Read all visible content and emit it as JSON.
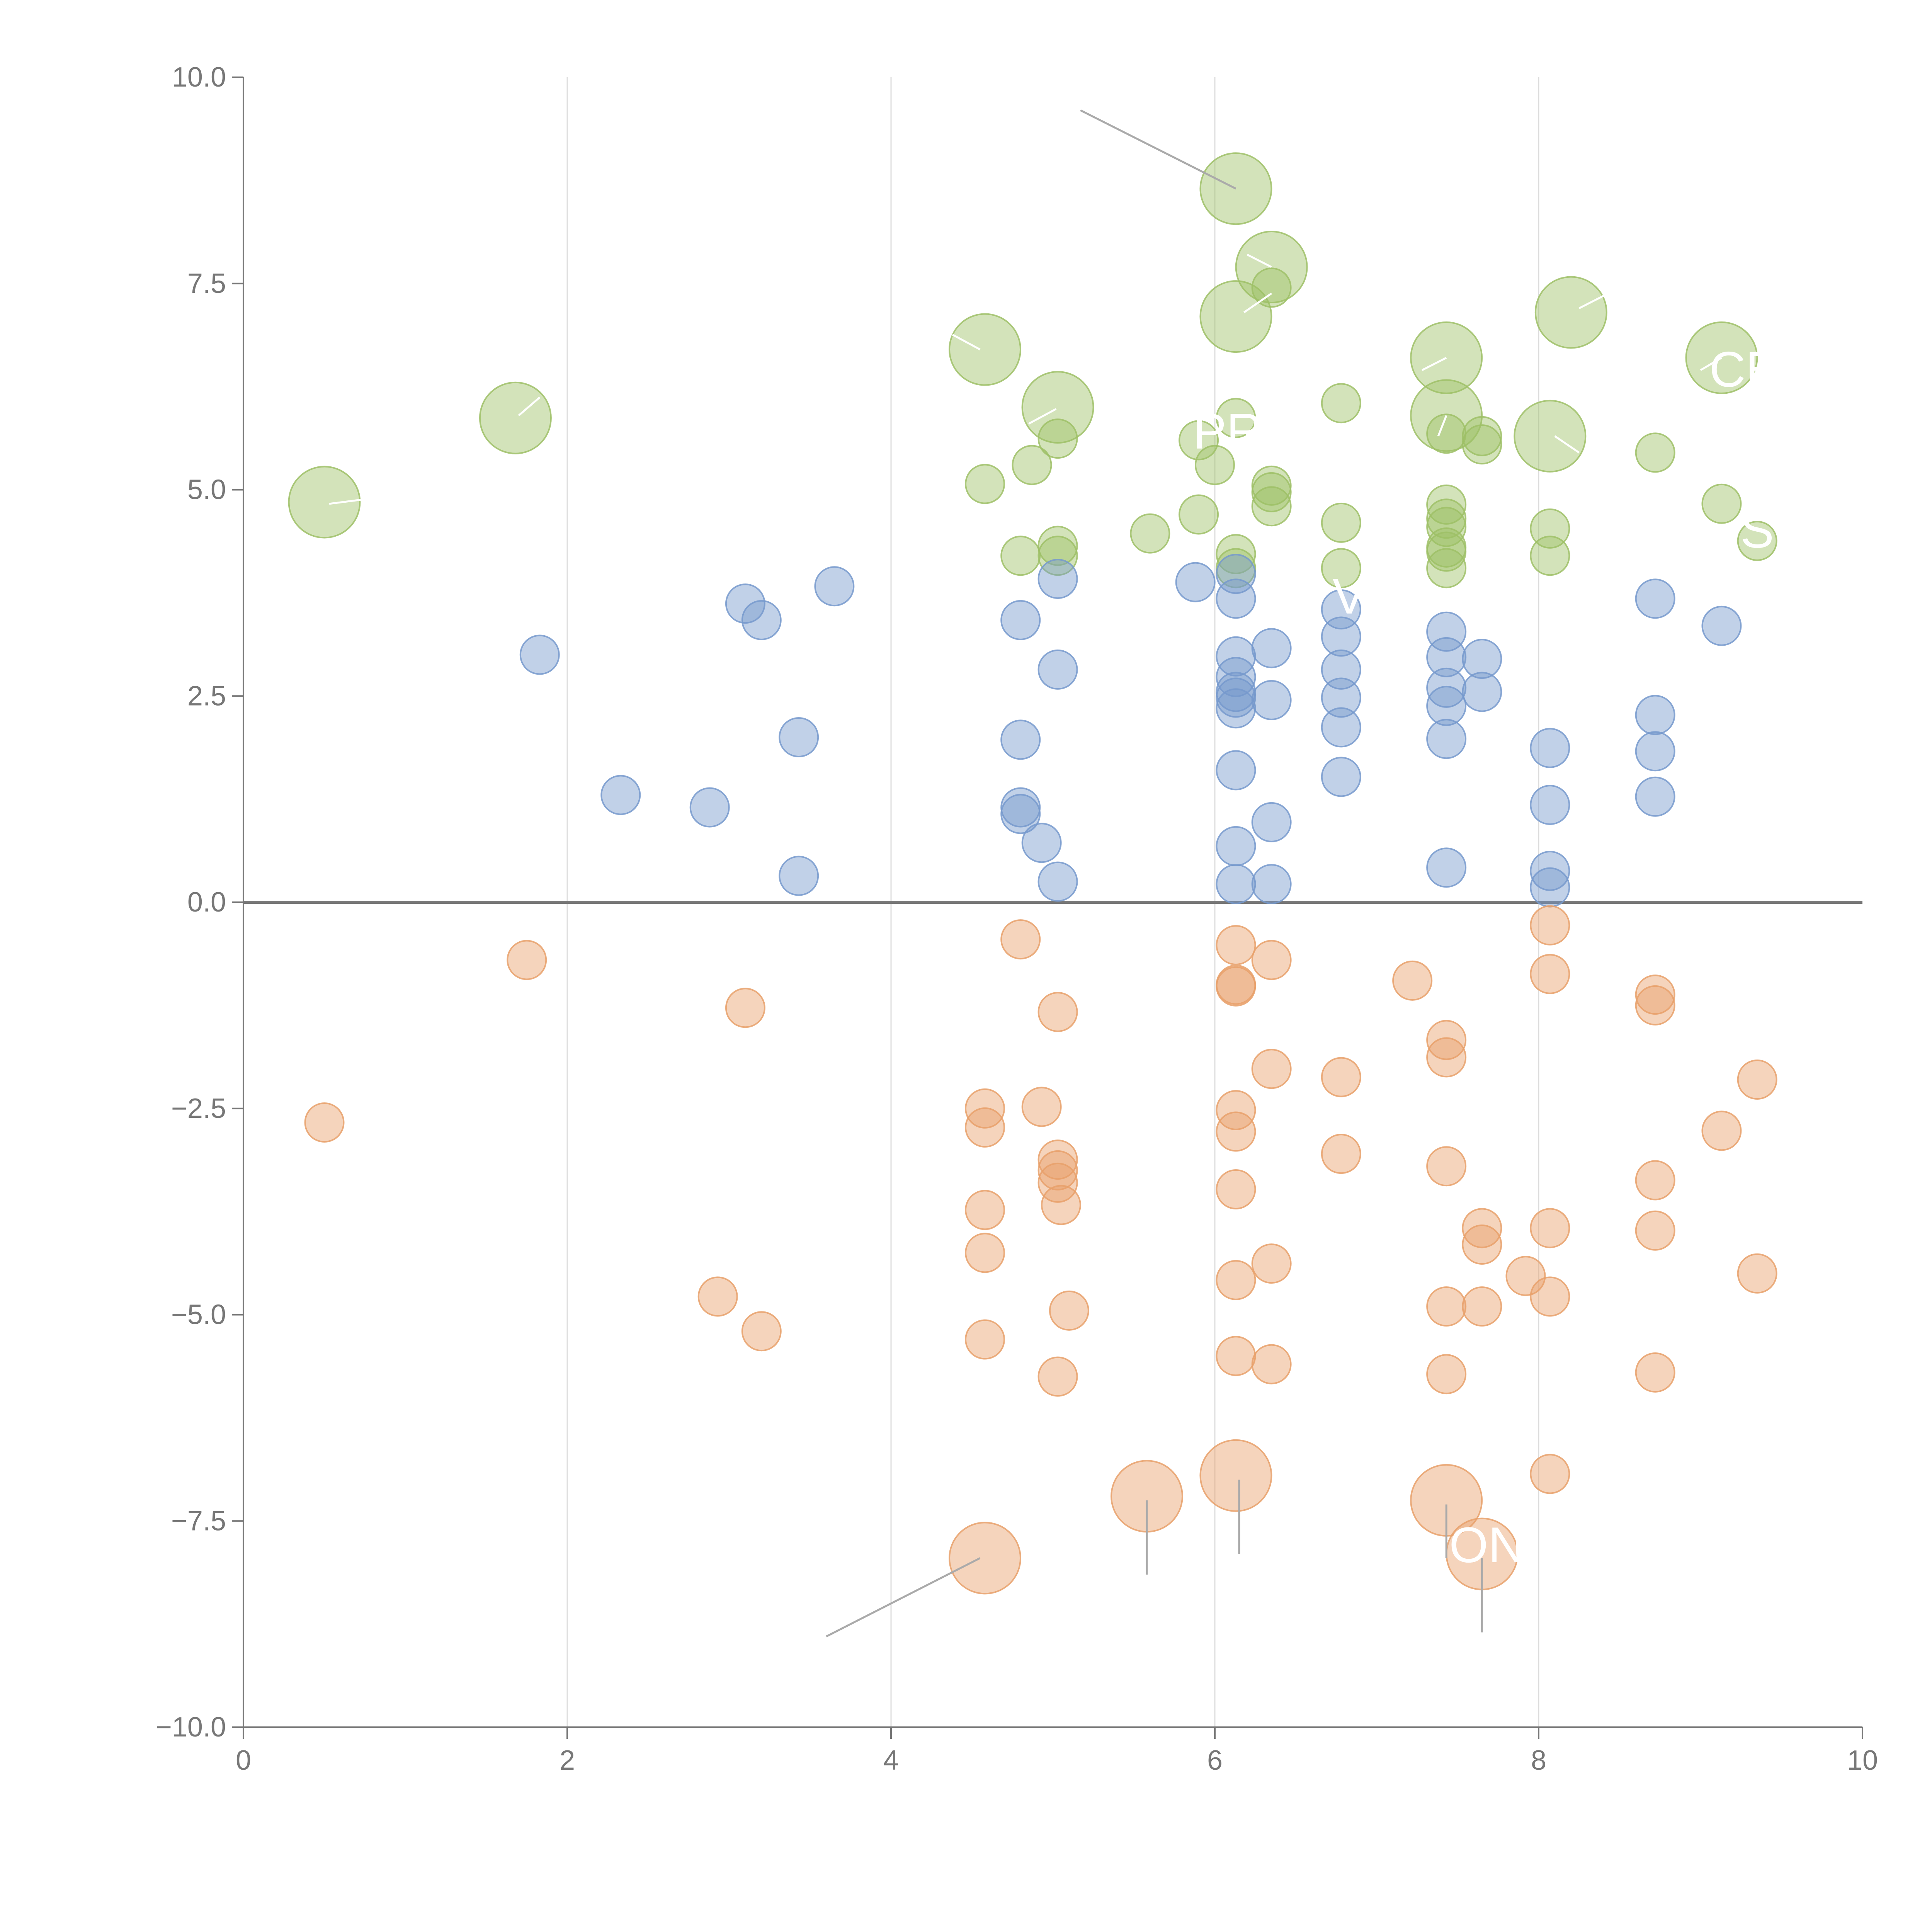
{
  "chart_data": {
    "type": "scatter",
    "title": "",
    "xlabel": "",
    "ylabel": "",
    "xlim": [
      0,
      10
    ],
    "ylim": [
      -10,
      10
    ],
    "x_ticks": [
      "0",
      "2",
      "4",
      "6",
      "8",
      "10"
    ],
    "x_tick_values": [
      0,
      2,
      4,
      6,
      8,
      10
    ],
    "y_ticks": [
      "10.0",
      "7.5",
      "5.0",
      "2.5",
      "0.0",
      "−2.5",
      "−5.0",
      "−7.5",
      "−10.0"
    ],
    "y_tick_values": [
      10,
      7.5,
      5,
      2.5,
      0,
      -2.5,
      -5,
      -7.5,
      -10
    ],
    "vertical_gridlines": [
      2,
      4,
      6,
      8
    ],
    "zero_line": 0,
    "series": [
      {
        "name": "green",
        "color": "#9dc066",
        "points": [
          [
            0.5,
            4.85,
            3
          ],
          [
            1.68,
            5.87,
            3
          ],
          [
            4.58,
            6.7,
            3
          ],
          [
            5.03,
            6.0,
            3
          ],
          [
            6.13,
            8.65,
            3
          ],
          [
            6.13,
            7.1,
            3
          ],
          [
            6.35,
            7.7,
            3
          ],
          [
            7.43,
            6.6,
            3
          ],
          [
            7.43,
            5.9,
            3
          ],
          [
            8.07,
            5.65,
            3
          ],
          [
            8.2,
            7.15,
            3
          ],
          [
            9.13,
            6.6,
            3
          ],
          [
            4.58,
            5.07,
            1
          ],
          [
            4.8,
            4.2,
            1
          ],
          [
            4.87,
            5.3,
            1
          ],
          [
            5.03,
            5.62,
            1
          ],
          [
            5.03,
            4.32,
            1
          ],
          [
            5.03,
            4.2,
            1
          ],
          [
            5.6,
            4.47,
            1
          ],
          [
            5.9,
            4.7,
            1
          ],
          [
            5.9,
            5.6,
            1
          ],
          [
            6.0,
            5.3,
            1
          ],
          [
            6.13,
            5.87,
            1
          ],
          [
            6.13,
            4.22,
            1
          ],
          [
            6.13,
            4.05,
            1
          ],
          [
            6.35,
            7.45,
            1
          ],
          [
            6.35,
            5.05,
            1
          ],
          [
            6.35,
            4.97,
            1
          ],
          [
            6.35,
            4.8,
            1
          ],
          [
            6.78,
            6.05,
            1
          ],
          [
            6.78,
            4.6,
            1
          ],
          [
            6.78,
            4.05,
            1
          ],
          [
            7.43,
            5.68,
            1
          ],
          [
            7.43,
            4.82,
            1
          ],
          [
            7.43,
            4.65,
            1
          ],
          [
            7.43,
            4.55,
            1
          ],
          [
            7.43,
            4.3,
            1
          ],
          [
            7.43,
            4.25,
            1
          ],
          [
            7.43,
            4.05,
            1
          ],
          [
            7.65,
            5.65,
            1
          ],
          [
            7.65,
            5.55,
            1
          ],
          [
            8.07,
            4.53,
            1
          ],
          [
            8.07,
            4.2,
            1
          ],
          [
            8.72,
            5.45,
            1
          ],
          [
            9.13,
            4.83,
            1
          ],
          [
            9.35,
            4.38,
            1
          ]
        ]
      },
      {
        "name": "blue",
        "color": "#7699cc",
        "points": [
          [
            1.83,
            3.0,
            1
          ],
          [
            2.33,
            1.3,
            1
          ],
          [
            2.88,
            1.15,
            1
          ],
          [
            3.1,
            3.62,
            1
          ],
          [
            3.2,
            3.42,
            1
          ],
          [
            3.43,
            2.0,
            1
          ],
          [
            3.43,
            0.32,
            1
          ],
          [
            3.65,
            3.83,
            1
          ],
          [
            4.8,
            3.42,
            1
          ],
          [
            4.8,
            1.97,
            1
          ],
          [
            4.8,
            1.15,
            1
          ],
          [
            4.8,
            1.07,
            1
          ],
          [
            4.93,
            0.72,
            1
          ],
          [
            5.03,
            3.92,
            1
          ],
          [
            5.03,
            2.82,
            1
          ],
          [
            5.03,
            0.25,
            1
          ],
          [
            5.88,
            3.88,
            1
          ],
          [
            6.13,
            3.98,
            1
          ],
          [
            6.13,
            3.68,
            1
          ],
          [
            6.13,
            2.98,
            1
          ],
          [
            6.13,
            2.73,
            1
          ],
          [
            6.13,
            2.55,
            1
          ],
          [
            6.13,
            2.48,
            1
          ],
          [
            6.13,
            2.35,
            1
          ],
          [
            6.13,
            1.6,
            1
          ],
          [
            6.13,
            0.68,
            1
          ],
          [
            6.13,
            0.22,
            1
          ],
          [
            6.35,
            3.08,
            1
          ],
          [
            6.35,
            2.45,
            1
          ],
          [
            6.35,
            0.97,
            1
          ],
          [
            6.35,
            0.22,
            1
          ],
          [
            6.78,
            3.55,
            1
          ],
          [
            6.78,
            3.22,
            1
          ],
          [
            6.78,
            2.82,
            1
          ],
          [
            6.78,
            2.48,
            1
          ],
          [
            6.78,
            2.12,
            1
          ],
          [
            6.78,
            1.52,
            1
          ],
          [
            7.43,
            3.28,
            1
          ],
          [
            7.43,
            2.97,
            1
          ],
          [
            7.43,
            2.6,
            1
          ],
          [
            7.43,
            2.38,
            1
          ],
          [
            7.43,
            1.98,
            1
          ],
          [
            7.43,
            0.42,
            1
          ],
          [
            7.65,
            2.95,
            1
          ],
          [
            7.65,
            2.55,
            1
          ],
          [
            8.07,
            1.87,
            1
          ],
          [
            8.07,
            1.18,
            1
          ],
          [
            8.07,
            0.38,
            1
          ],
          [
            8.07,
            0.18,
            1
          ],
          [
            8.72,
            3.68,
            1
          ],
          [
            8.72,
            2.27,
            1
          ],
          [
            8.72,
            1.83,
            1
          ],
          [
            8.72,
            1.28,
            1
          ],
          [
            9.13,
            3.35,
            1
          ]
        ]
      },
      {
        "name": "orange",
        "color": "#e8a06a",
        "points": [
          [
            0.5,
            -2.67,
            1
          ],
          [
            1.75,
            -0.7,
            1
          ],
          [
            2.93,
            -4.78,
            1
          ],
          [
            3.1,
            -1.28,
            1
          ],
          [
            3.2,
            -5.2,
            1
          ],
          [
            4.58,
            -2.5,
            1
          ],
          [
            4.58,
            -2.73,
            1
          ],
          [
            4.58,
            -3.73,
            1
          ],
          [
            4.58,
            -4.25,
            1
          ],
          [
            4.58,
            -5.3,
            1
          ],
          [
            4.58,
            -7.95,
            3
          ],
          [
            4.8,
            -0.45,
            1
          ],
          [
            4.93,
            -2.48,
            1
          ],
          [
            5.03,
            -1.33,
            1
          ],
          [
            5.03,
            -3.12,
            1
          ],
          [
            5.03,
            -3.25,
            1
          ],
          [
            5.03,
            -3.4,
            1
          ],
          [
            5.05,
            -3.67,
            1
          ],
          [
            5.03,
            -5.75,
            1
          ],
          [
            5.1,
            -4.95,
            1
          ],
          [
            5.58,
            -7.2,
            3
          ],
          [
            6.13,
            -0.52,
            1
          ],
          [
            6.13,
            -1.0,
            1
          ],
          [
            6.13,
            -1.02,
            1
          ],
          [
            6.13,
            -2.52,
            1
          ],
          [
            6.13,
            -2.78,
            1
          ],
          [
            6.13,
            -3.48,
            1
          ],
          [
            6.13,
            -4.58,
            1
          ],
          [
            6.13,
            -5.5,
            1
          ],
          [
            6.13,
            -6.95,
            3
          ],
          [
            6.35,
            -0.7,
            1
          ],
          [
            6.35,
            -2.02,
            1
          ],
          [
            6.35,
            -4.38,
            1
          ],
          [
            6.35,
            -5.6,
            1
          ],
          [
            6.78,
            -2.12,
            1
          ],
          [
            6.78,
            -3.05,
            1
          ],
          [
            7.22,
            -0.95,
            1
          ],
          [
            7.43,
            -1.67,
            1
          ],
          [
            7.43,
            -1.88,
            1
          ],
          [
            7.43,
            -3.2,
            1
          ],
          [
            7.43,
            -4.9,
            1
          ],
          [
            7.43,
            -5.72,
            1
          ],
          [
            7.43,
            -7.25,
            3
          ],
          [
            7.65,
            -3.95,
            1
          ],
          [
            7.65,
            -4.15,
            1
          ],
          [
            7.65,
            -4.9,
            1
          ],
          [
            7.65,
            -7.9,
            3
          ],
          [
            7.92,
            -4.53,
            1
          ],
          [
            8.07,
            -0.28,
            1
          ],
          [
            8.07,
            -0.87,
            1
          ],
          [
            8.07,
            -3.95,
            1
          ],
          [
            8.07,
            -4.78,
            1
          ],
          [
            8.07,
            -6.93,
            1
          ],
          [
            8.72,
            -1.12,
            1
          ],
          [
            8.72,
            -1.25,
            1
          ],
          [
            8.72,
            -3.37,
            1
          ],
          [
            8.72,
            -3.98,
            1
          ],
          [
            8.72,
            -5.7,
            1
          ],
          [
            9.13,
            -2.77,
            1
          ],
          [
            9.35,
            -2.15,
            1
          ],
          [
            9.35,
            -4.5,
            1
          ]
        ]
      }
    ],
    "annotations": [
      {
        "text": "PR",
        "x": 6.08,
        "y": 5.5
      },
      {
        "text": "V",
        "x": 6.83,
        "y": 3.5
      },
      {
        "text": "CE",
        "x": 9.27,
        "y": 6.25
      },
      {
        "text": "S",
        "x": 9.35,
        "y": 4.3
      },
      {
        "text": "ON",
        "x": 7.68,
        "y": -8.0
      }
    ],
    "leader_lines": [
      {
        "x1": 5.17,
        "y1": 9.6,
        "x2": 6.13,
        "y2": 8.65,
        "stroke": "#aaaaaa"
      },
      {
        "x1": 3.6,
        "y1": -8.9,
        "x2": 4.55,
        "y2": -7.95,
        "stroke": "#aaaaaa"
      },
      {
        "x1": 5.58,
        "y1": -7.25,
        "x2": 5.58,
        "y2": -8.15,
        "stroke": "#aaaaaa"
      },
      {
        "x1": 6.15,
        "y1": -7.0,
        "x2": 6.15,
        "y2": -7.9,
        "stroke": "#aaaaaa"
      },
      {
        "x1": 7.43,
        "y1": -7.3,
        "x2": 7.43,
        "y2": -7.95,
        "stroke": "#aaaaaa"
      },
      {
        "x1": 7.65,
        "y1": -7.95,
        "x2": 7.65,
        "y2": -8.85,
        "stroke": "#aaaaaa"
      },
      {
        "x1": 0.53,
        "y1": 4.83,
        "x2": 0.73,
        "y2": 4.88,
        "stroke": "#ffffff"
      },
      {
        "x1": 1.7,
        "y1": 5.9,
        "x2": 1.83,
        "y2": 6.12,
        "stroke": "#ffffff"
      },
      {
        "x1": 4.55,
        "y1": 6.7,
        "x2": 4.38,
        "y2": 6.88,
        "stroke": "#ffffff"
      },
      {
        "x1": 5.02,
        "y1": 5.98,
        "x2": 4.85,
        "y2": 5.8,
        "stroke": "#ffffff"
      },
      {
        "x1": 6.35,
        "y1": 7.7,
        "x2": 6.2,
        "y2": 7.85,
        "stroke": "#ffffff"
      },
      {
        "x1": 6.18,
        "y1": 7.15,
        "x2": 6.35,
        "y2": 7.38,
        "stroke": "#ffffff"
      },
      {
        "x1": 7.43,
        "y1": 6.6,
        "x2": 7.28,
        "y2": 6.45,
        "stroke": "#ffffff"
      },
      {
        "x1": 7.43,
        "y1": 5.9,
        "x2": 7.38,
        "y2": 5.65,
        "stroke": "#ffffff"
      },
      {
        "x1": 8.1,
        "y1": 5.65,
        "x2": 8.25,
        "y2": 5.45,
        "stroke": "#ffffff"
      },
      {
        "x1": 8.25,
        "y1": 7.2,
        "x2": 8.4,
        "y2": 7.35,
        "stroke": "#ffffff"
      },
      {
        "x1": 9.13,
        "y1": 6.6,
        "x2": 9.0,
        "y2": 6.45,
        "stroke": "#ffffff"
      }
    ],
    "colors": {
      "axis": "#777777",
      "grid": "#dddddd",
      "zero_line": "#777777"
    }
  }
}
